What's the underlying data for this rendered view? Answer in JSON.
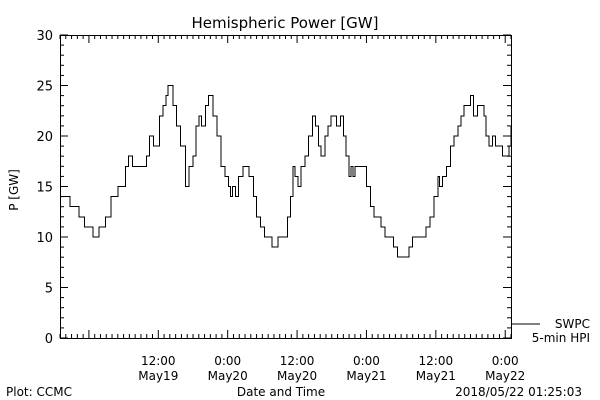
{
  "chart_data": {
    "type": "line",
    "title": "Hemispheric Power [GW]",
    "ylabel": "P [GW]",
    "xlabel": "Date and Time",
    "ylim": [
      0,
      30
    ],
    "yticks": [
      0,
      5,
      10,
      15,
      20,
      25,
      30
    ],
    "xlim": [
      "2018-05-18T19:00",
      "2018-05-22T01:00"
    ],
    "xticks": [
      {
        "time": "2018-05-19T12:00",
        "line1": "12:00",
        "line2": "May19"
      },
      {
        "time": "2018-05-20T00:00",
        "line1": "0:00",
        "line2": "May20"
      },
      {
        "time": "2018-05-20T12:00",
        "line1": "12:00",
        "line2": "May20"
      },
      {
        "time": "2018-05-21T00:00",
        "line1": "0:00",
        "line2": "May21"
      },
      {
        "time": "2018-05-21T12:00",
        "line1": "12:00",
        "line2": "May21"
      },
      {
        "time": "2018-05-22T00:00",
        "line1": "0:00",
        "line2": "May22"
      }
    ],
    "grid": false,
    "legend": {
      "placement": "bottom-right",
      "line1": "SWPC",
      "line2": "5-min HPI"
    },
    "series": [
      {
        "color": "#000000",
        "points": [
          [
            "2018-05-18T19:00",
            14
          ],
          [
            "2018-05-18T20:40",
            14
          ],
          [
            "2018-05-18T20:45",
            13
          ],
          [
            "2018-05-18T22:10",
            13
          ],
          [
            "2018-05-18T22:15",
            12
          ],
          [
            "2018-05-18T23:10",
            12
          ],
          [
            "2018-05-18T23:15",
            11
          ],
          [
            "2018-05-19T00:40",
            11
          ],
          [
            "2018-05-19T00:45",
            10
          ],
          [
            "2018-05-19T01:40",
            10
          ],
          [
            "2018-05-19T01:45",
            11
          ],
          [
            "2018-05-19T02:50",
            12
          ],
          [
            "2018-05-19T03:50",
            14
          ],
          [
            "2018-05-19T05:00",
            15
          ],
          [
            "2018-05-19T06:20",
            17
          ],
          [
            "2018-05-19T06:50",
            18
          ],
          [
            "2018-05-19T07:30",
            17
          ],
          [
            "2018-05-19T09:30",
            17
          ],
          [
            "2018-05-19T10:00",
            18
          ],
          [
            "2018-05-19T10:30",
            20
          ],
          [
            "2018-05-19T11:10",
            19
          ],
          [
            "2018-05-19T12:10",
            22
          ],
          [
            "2018-05-19T12:50",
            23
          ],
          [
            "2018-05-19T13:20",
            24
          ],
          [
            "2018-05-19T13:40",
            25
          ],
          [
            "2018-05-19T14:30",
            23
          ],
          [
            "2018-05-19T15:10",
            21
          ],
          [
            "2018-05-19T15:50",
            19
          ],
          [
            "2018-05-19T16:40",
            15
          ],
          [
            "2018-05-19T17:20",
            17
          ],
          [
            "2018-05-19T18:00",
            18
          ],
          [
            "2018-05-19T18:30",
            21
          ],
          [
            "2018-05-19T19:00",
            22
          ],
          [
            "2018-05-19T19:30",
            21
          ],
          [
            "2018-05-19T20:10",
            23
          ],
          [
            "2018-05-19T20:40",
            24
          ],
          [
            "2018-05-19T21:30",
            22
          ],
          [
            "2018-05-19T22:10",
            20
          ],
          [
            "2018-05-19T22:50",
            17
          ],
          [
            "2018-05-19T23:30",
            16
          ],
          [
            "2018-05-20T00:10",
            15
          ],
          [
            "2018-05-20T00:30",
            14
          ],
          [
            "2018-05-20T00:50",
            15
          ],
          [
            "2018-05-20T01:20",
            14
          ],
          [
            "2018-05-20T01:50",
            16
          ],
          [
            "2018-05-20T02:40",
            17
          ],
          [
            "2018-05-20T03:40",
            16
          ],
          [
            "2018-05-20T04:30",
            14
          ],
          [
            "2018-05-20T05:00",
            12
          ],
          [
            "2018-05-20T05:40",
            11
          ],
          [
            "2018-05-20T06:20",
            10
          ],
          [
            "2018-05-20T07:00",
            10
          ],
          [
            "2018-05-20T07:40",
            9
          ],
          [
            "2018-05-20T08:10",
            9
          ],
          [
            "2018-05-20T08:40",
            10
          ],
          [
            "2018-05-20T09:40",
            10
          ],
          [
            "2018-05-20T10:20",
            12
          ],
          [
            "2018-05-20T10:50",
            14
          ],
          [
            "2018-05-20T11:20",
            17
          ],
          [
            "2018-05-20T11:40",
            16
          ],
          [
            "2018-05-20T12:10",
            15
          ],
          [
            "2018-05-20T12:40",
            17
          ],
          [
            "2018-05-20T13:20",
            18
          ],
          [
            "2018-05-20T14:00",
            20
          ],
          [
            "2018-05-20T14:40",
            22
          ],
          [
            "2018-05-20T15:10",
            21
          ],
          [
            "2018-05-20T15:40",
            19
          ],
          [
            "2018-05-20T16:10",
            18
          ],
          [
            "2018-05-20T16:50",
            20
          ],
          [
            "2018-05-20T17:20",
            21
          ],
          [
            "2018-05-20T17:50",
            22
          ],
          [
            "2018-05-20T18:20",
            22
          ],
          [
            "2018-05-20T18:50",
            21
          ],
          [
            "2018-05-20T19:30",
            22
          ],
          [
            "2018-05-20T20:00",
            20
          ],
          [
            "2018-05-20T20:30",
            18
          ],
          [
            "2018-05-20T21:00",
            16
          ],
          [
            "2018-05-20T21:20",
            17
          ],
          [
            "2018-05-20T21:40",
            16
          ],
          [
            "2018-05-20T22:00",
            17
          ],
          [
            "2018-05-20T23:30",
            17
          ],
          [
            "2018-05-21T00:00",
            15
          ],
          [
            "2018-05-21T00:40",
            13
          ],
          [
            "2018-05-21T01:20",
            12
          ],
          [
            "2018-05-21T02:00",
            12
          ],
          [
            "2018-05-21T02:30",
            11
          ],
          [
            "2018-05-21T03:10",
            10
          ],
          [
            "2018-05-21T04:00",
            10
          ],
          [
            "2018-05-21T04:40",
            9
          ],
          [
            "2018-05-21T05:20",
            8
          ],
          [
            "2018-05-21T06:40",
            8
          ],
          [
            "2018-05-21T07:20",
            9
          ],
          [
            "2018-05-21T08:00",
            10
          ],
          [
            "2018-05-21T09:40",
            10
          ],
          [
            "2018-05-21T10:20",
            11
          ],
          [
            "2018-05-21T11:00",
            12
          ],
          [
            "2018-05-21T11:40",
            14
          ],
          [
            "2018-05-21T12:20",
            16
          ],
          [
            "2018-05-21T12:40",
            15
          ],
          [
            "2018-05-21T13:10",
            16
          ],
          [
            "2018-05-21T13:50",
            17
          ],
          [
            "2018-05-21T14:30",
            19
          ],
          [
            "2018-05-21T15:10",
            20
          ],
          [
            "2018-05-21T15:50",
            21
          ],
          [
            "2018-05-21T16:20",
            22
          ],
          [
            "2018-05-21T16:50",
            23
          ],
          [
            "2018-05-21T17:30",
            23
          ],
          [
            "2018-05-21T18:00",
            24
          ],
          [
            "2018-05-21T18:30",
            22
          ],
          [
            "2018-05-21T19:10",
            23
          ],
          [
            "2018-05-21T19:40",
            23
          ],
          [
            "2018-05-21T20:20",
            22
          ],
          [
            "2018-05-21T20:40",
            20
          ],
          [
            "2018-05-21T21:10",
            19
          ],
          [
            "2018-05-21T21:50",
            20
          ],
          [
            "2018-05-21T22:20",
            19
          ],
          [
            "2018-05-21T23:00",
            19
          ],
          [
            "2018-05-21T23:30",
            18
          ],
          [
            "2018-05-22T00:10",
            18
          ],
          [
            "2018-05-22T00:40",
            19
          ],
          [
            "2018-05-22T01:00",
            21
          ]
        ]
      }
    ]
  },
  "footer": {
    "left": "Plot: CCMC",
    "center": "Date and Time",
    "right": "2018/05/22 01:25:03"
  }
}
